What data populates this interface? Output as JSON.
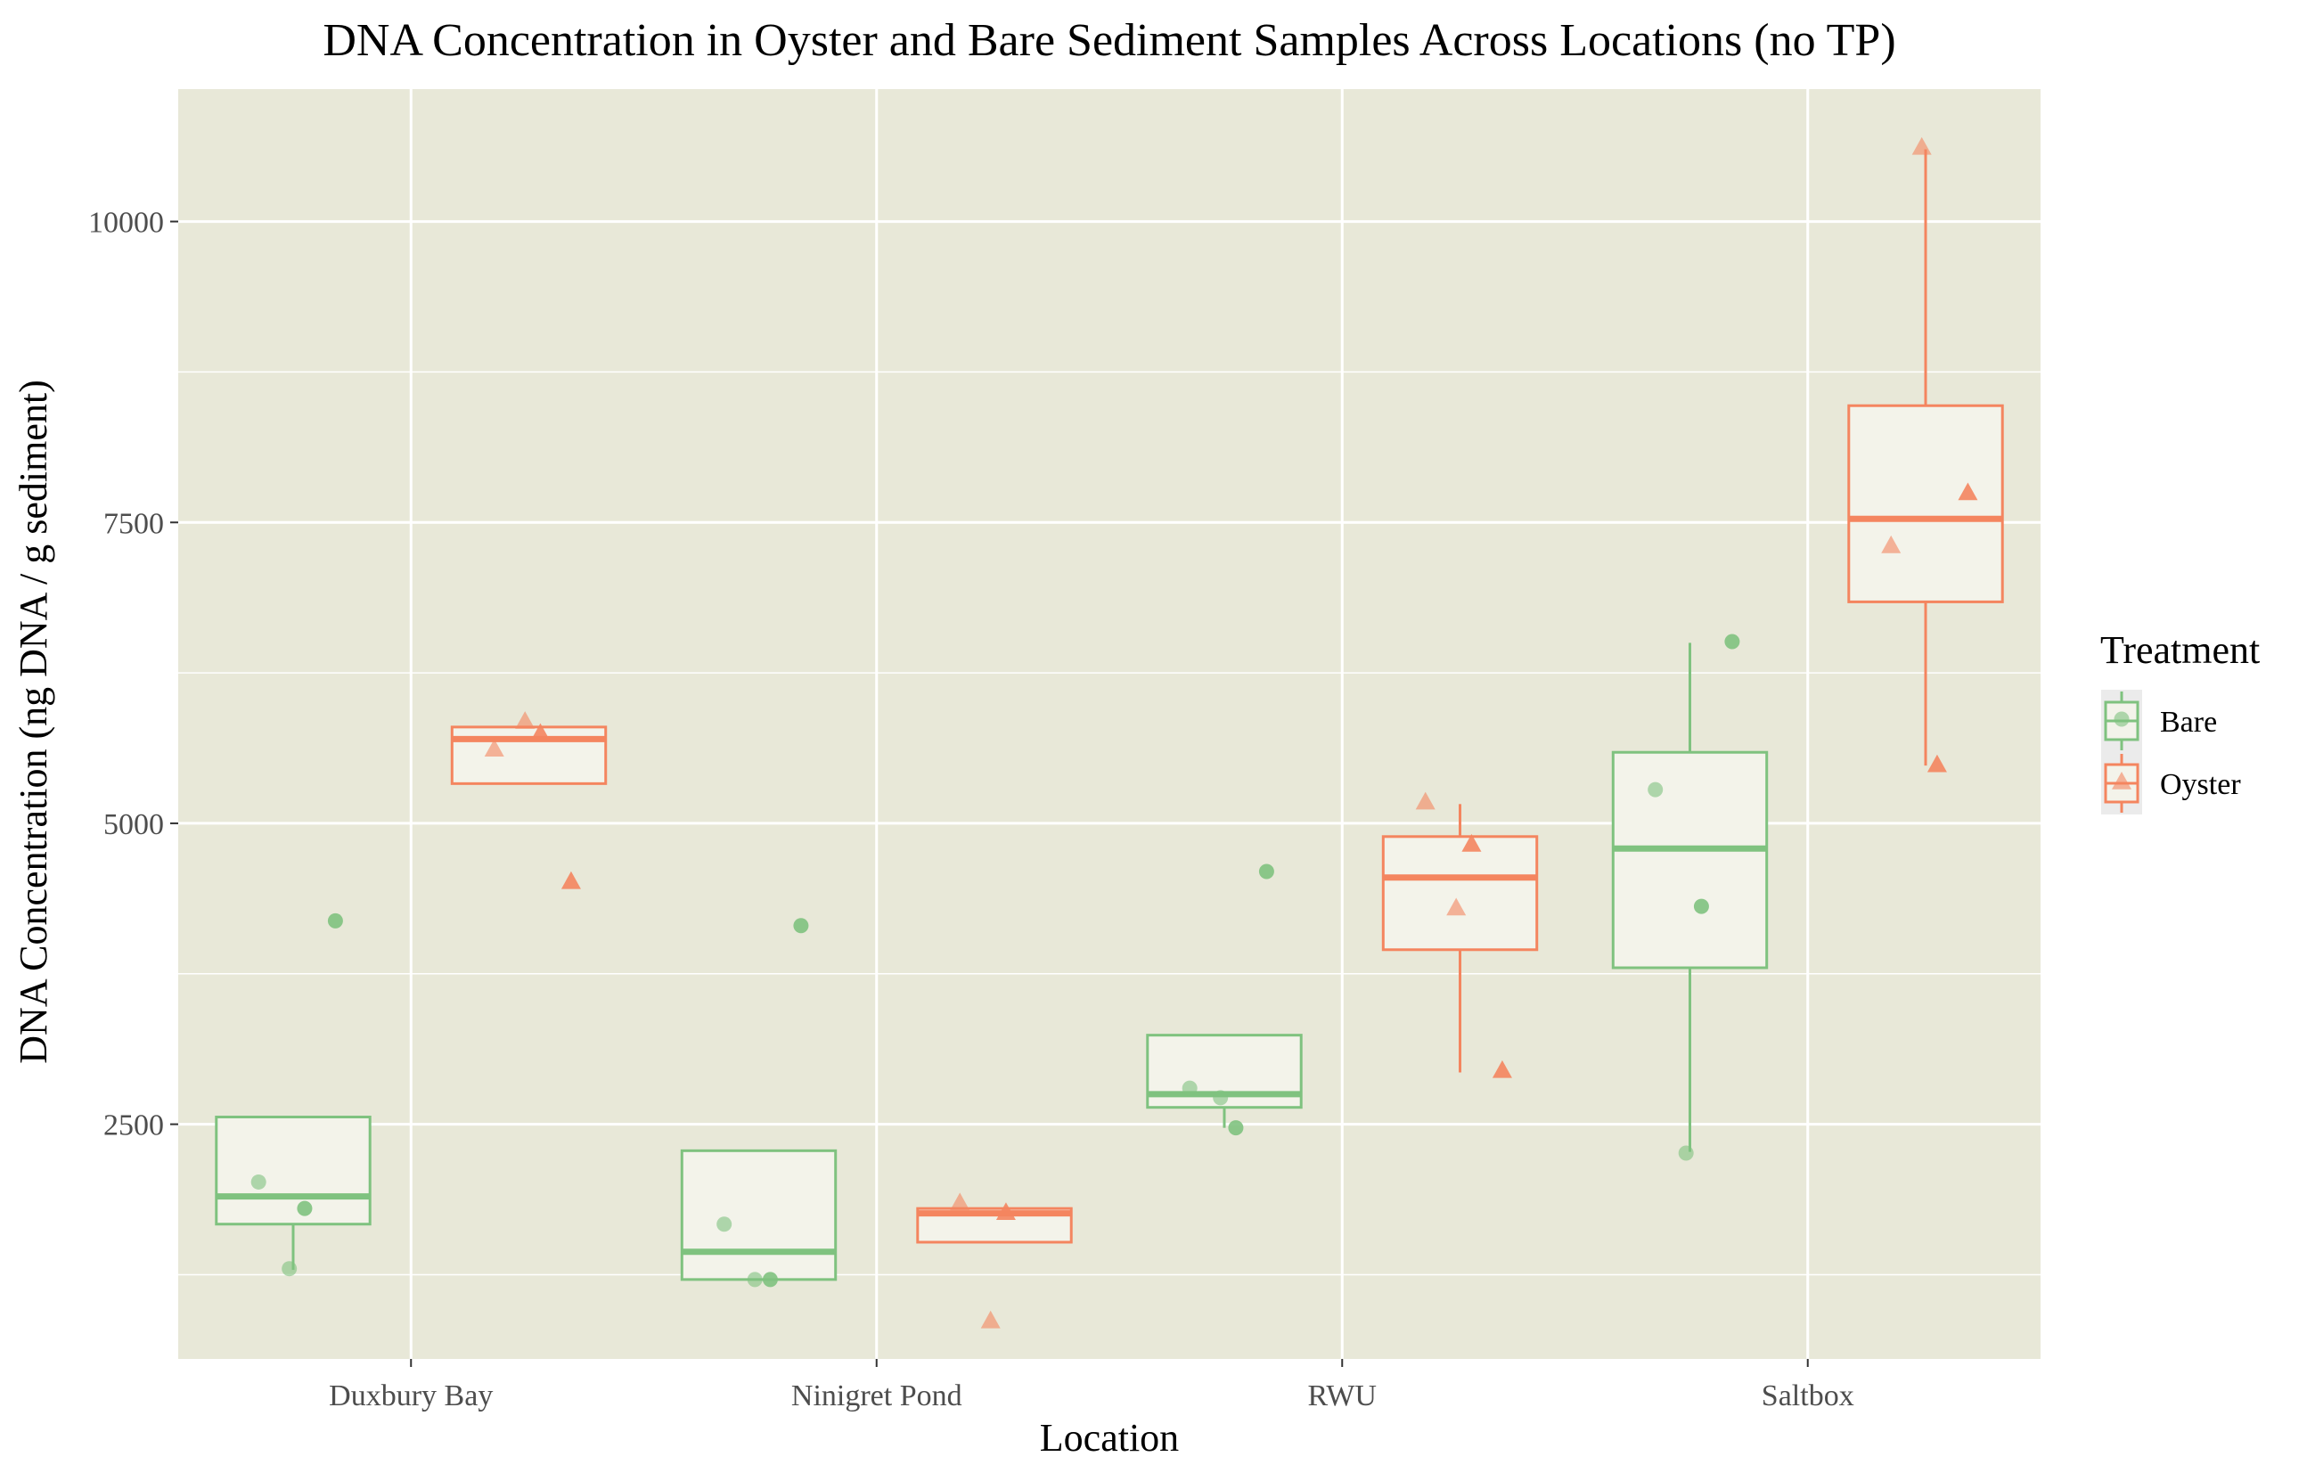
{
  "chart_data": {
    "type": "box",
    "title": "DNA Concentration in Oyster and Bare Sediment Samples Across Locations (no TP)",
    "xlabel": "Location",
    "ylabel": "DNA Concentration (ng DNA / g sediment)",
    "categories": [
      "Duxbury Bay",
      "Ninigret Pond",
      "RWU",
      "Saltbox"
    ],
    "ylim": [
      550,
      11100
    ],
    "y_ticks": [
      2500,
      5000,
      7500,
      10000
    ],
    "grid": true,
    "legend": {
      "title": "Treatment",
      "position": "right"
    },
    "series": [
      {
        "name": "Bare",
        "color": "#7fc27f",
        "marker": "circle",
        "boxes": [
          {
            "category": "Duxbury Bay",
            "q1": 1670,
            "median": 1900,
            "q3": 2560,
            "whisker_low": 1290,
            "whisker_high": 2560
          },
          {
            "category": "Ninigret Pond",
            "q1": 1210,
            "median": 1440,
            "q3": 2280,
            "whisker_low": 1210,
            "whisker_high": 2280
          },
          {
            "category": "RWU",
            "q1": 2640,
            "median": 2750,
            "q3": 3240,
            "whisker_low": 2470,
            "whisker_high": 3240
          },
          {
            "category": "Saltbox",
            "q1": 3800,
            "median": 4790,
            "q3": 5590,
            "whisker_low": 2270,
            "whisker_high": 6500
          }
        ],
        "points": [
          {
            "category": "Duxbury Bay",
            "values": [
              2020,
              1800,
              1300,
              4190
            ]
          },
          {
            "category": "Ninigret Pond",
            "values": [
              1670,
              1210,
              1210,
              4150
            ]
          },
          {
            "category": "RWU",
            "values": [
              2800,
              2470,
              2720,
              4600
            ]
          },
          {
            "category": "Saltbox",
            "values": [
              5280,
              4310,
              2260,
              6510
            ]
          }
        ]
      },
      {
        "name": "Oyster",
        "color": "#f4855f",
        "marker": "triangle",
        "boxes": [
          {
            "category": "Duxbury Bay",
            "q1": 5330,
            "median": 5700,
            "q3": 5800,
            "whisker_low": 5330,
            "whisker_high": 5800
          },
          {
            "category": "Ninigret Pond",
            "q1": 1520,
            "median": 1760,
            "q3": 1800,
            "whisker_low": 1520,
            "whisker_high": 1800
          },
          {
            "category": "RWU",
            "q1": 3950,
            "median": 4550,
            "q3": 4890,
            "whisker_low": 2930,
            "whisker_high": 5160
          },
          {
            "category": "Saltbox",
            "q1": 6840,
            "median": 7530,
            "q3": 8470,
            "whisker_low": 5480,
            "whisker_high": 10600
          }
        ],
        "points": [
          {
            "category": "Duxbury Bay",
            "values": [
              5620,
              5750,
              5850,
              4520
            ]
          },
          {
            "category": "Ninigret Pond",
            "values": [
              1850,
              1770,
              870
            ]
          },
          {
            "category": "RWU",
            "values": [
              5180,
              4830,
              4300,
              2950
            ]
          },
          {
            "category": "Saltbox",
            "values": [
              7310,
              5490,
              10620,
              7750
            ]
          }
        ]
      }
    ]
  }
}
